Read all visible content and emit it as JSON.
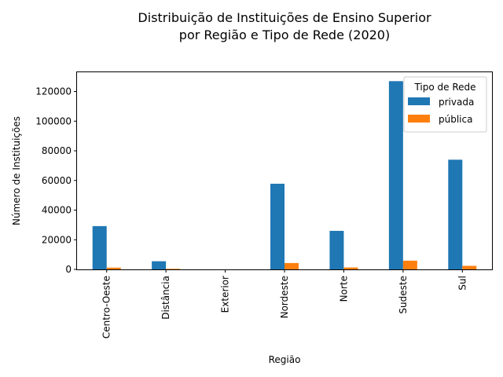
{
  "chart_data": {
    "type": "bar",
    "title_lines": [
      "Distribuição de Instituições de Ensino Superior",
      "por Região e Tipo de Rede (2020)"
    ],
    "xlabel": "Região",
    "ylabel": "Número de Instituições",
    "categories": [
      "Centro-Oeste",
      "Distância",
      "Exterior",
      "Nordeste",
      "Norte",
      "Sudeste",
      "Sul"
    ],
    "series": [
      {
        "name": "privada",
        "color": "#1f77b4",
        "values": [
          29200,
          5500,
          0,
          57800,
          26000,
          127000,
          74000
        ]
      },
      {
        "name": "pública",
        "color": "#ff7f0e",
        "values": [
          1200,
          400,
          0,
          4300,
          1300,
          5900,
          2400
        ]
      }
    ],
    "ylim": [
      0,
      133000
    ],
    "yticks": [
      0,
      20000,
      40000,
      60000,
      80000,
      100000,
      120000
    ],
    "ytick_labels": [
      "0",
      "20000",
      "40000",
      "60000",
      "80000",
      "100000",
      "120000"
    ],
    "legend": {
      "title": "Tipo de Rede",
      "position": "top-right"
    },
    "grid": false
  }
}
